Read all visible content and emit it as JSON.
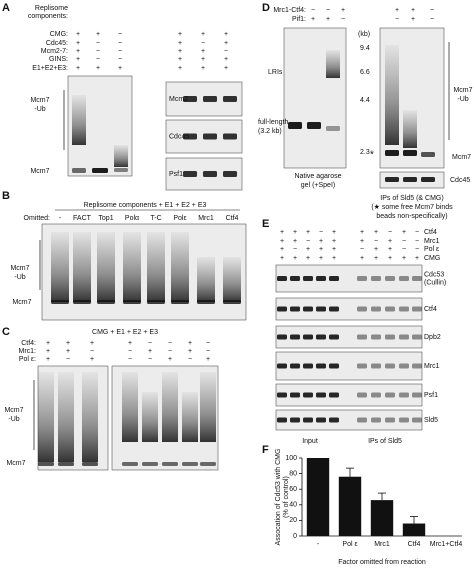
{
  "panel_a": {
    "label": "A",
    "header": [
      "Replisome",
      "components:"
    ],
    "rows": [
      "CMG:",
      "Cdc45:",
      "Mcm2-7:",
      "GINS:",
      "E1+E2+E3:"
    ],
    "left_signs": [
      [
        "+",
        "+",
        "−"
      ],
      [
        "+",
        "−",
        "−"
      ],
      [
        "+",
        "−",
        "−"
      ],
      [
        "+",
        "−",
        "−"
      ],
      [
        "+",
        "+",
        "+"
      ]
    ],
    "right_signs": [
      [
        "+",
        "+",
        "+"
      ],
      [
        "+",
        "−",
        "+"
      ],
      [
        "+",
        "+",
        "−"
      ],
      [
        "+",
        "+",
        "+"
      ],
      [
        "+",
        "+",
        "+"
      ]
    ],
    "ub_label": [
      "Mcm7",
      "-Ub"
    ],
    "mcm7_label": "Mcm7",
    "right_blots": [
      "Mcm2",
      "Cdc45",
      "Psf1"
    ]
  },
  "panel_b": {
    "label": "B",
    "title": "Replisome components + E1 + E2 + E3",
    "omitted": "Omitted:",
    "lanes": [
      "-",
      "FACT",
      "Top1",
      "Polα",
      "T-C",
      "Polε",
      "Mrc1",
      "Ctf4"
    ],
    "ub_label": [
      "Mcm7",
      "-Ub"
    ],
    "mcm7_label": "Mcm7"
  },
  "panel_c": {
    "label": "C",
    "title": "CMG + E1 + E2 + E3",
    "rows": [
      "Ctf4:",
      "Mrc1:",
      "Pol ε:"
    ],
    "left_signs": [
      [
        "+",
        "+",
        "+"
      ],
      [
        "+",
        "+",
        "−"
      ],
      [
        "+",
        "−",
        "+"
      ]
    ],
    "right_signs": [
      [
        "+",
        "−",
        "−",
        "+",
        "−"
      ],
      [
        "−",
        "+",
        "−",
        "+",
        "−"
      ],
      [
        "−",
        "−",
        "+",
        "−",
        "+"
      ]
    ],
    "ub_label": [
      "Mcm7",
      "-Ub"
    ],
    "mcm7_label": "Mcm7"
  },
  "panel_d": {
    "label": "D",
    "rows": [
      "Mrc1-Ctf4:",
      "Pif1:"
    ],
    "left_signs": [
      [
        "−",
        "−",
        "+"
      ],
      [
        "+",
        "+",
        "−"
      ]
    ],
    "right_signs": [
      [
        "+",
        "+",
        "−"
      ],
      [
        "−",
        "+",
        "−"
      ]
    ],
    "kb_unit": "(kb)",
    "markers": [
      "9.4",
      "6.6",
      "4.4",
      "2.3"
    ],
    "lri": "LRIs",
    "full_length": [
      "full-length",
      "(3.2 kb)"
    ],
    "gel_caption": [
      "Native agarose",
      "gel (+SpeI)"
    ],
    "ub_label": [
      "Mcm7",
      "-Ub"
    ],
    "star": "*",
    "mcm7_label": "Mcm7",
    "cdc45_label": "Cdc45",
    "ip_caption": [
      "IPs of Sld5 (& CMG)",
      "(★ some free Mcm7 binds",
      "beads non-specifically)"
    ]
  },
  "panel_e": {
    "label": "E",
    "rows": [
      "Ctf4",
      "Mrc1",
      "Pol ε",
      "CMG"
    ],
    "signs": [
      [
        "+",
        "+",
        "+",
        "−",
        "+",
        "+",
        "+",
        "−",
        "+",
        "−"
      ],
      [
        "+",
        "+",
        "−",
        "+",
        "+",
        "+",
        "−",
        "+",
        "−",
        "−"
      ],
      [
        "+",
        "−",
        "+",
        "+",
        "+",
        "−",
        "+",
        "+",
        "−",
        "−"
      ],
      [
        "+",
        "+",
        "+",
        "+",
        "+",
        "+",
        "+",
        "+",
        "+",
        "+"
      ]
    ],
    "blots": [
      [
        "Cdc53",
        "(Cullin)"
      ],
      [
        "Ctf4"
      ],
      [
        "Dpb2"
      ],
      [
        "Mrc1"
      ],
      [
        "Psf1"
      ],
      [
        "Sld5"
      ]
    ],
    "input": "Input",
    "ips": "IPs of Sld5"
  },
  "chart_data": {
    "type": "bar",
    "panel_label": "F",
    "y_label": [
      "Assocation of Cdc53 with CMG",
      "(% of control)"
    ],
    "x_label": "Factor omitted from reaction",
    "categories": [
      "-",
      "Pol ε",
      "Mrc1",
      "Ctf4",
      "Mrc1+Ctf4"
    ],
    "values": [
      100,
      76,
      46,
      16,
      0
    ],
    "errors": [
      null,
      11,
      9,
      9,
      null
    ],
    "color": "#111111",
    "ylim": [
      0,
      100
    ],
    "yticks": [
      0,
      20,
      40,
      60,
      80,
      100
    ]
  }
}
